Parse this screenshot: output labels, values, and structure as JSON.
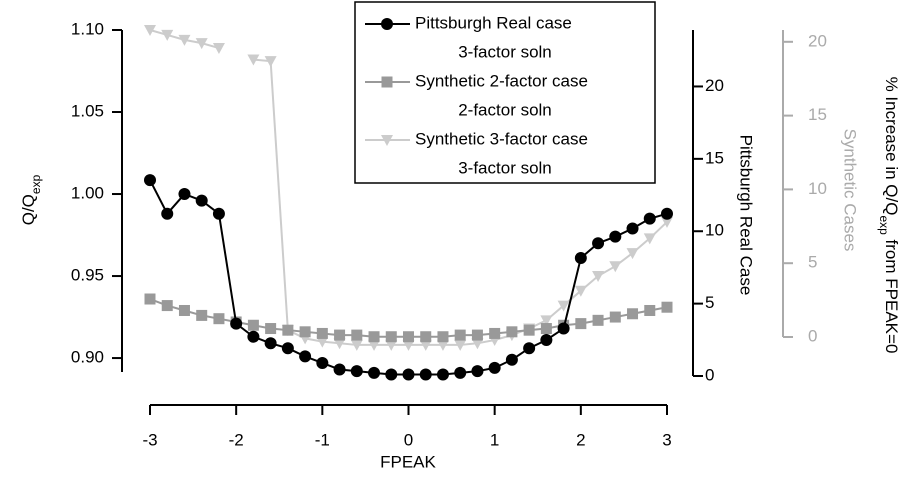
{
  "chart_data": {
    "type": "line",
    "xlabel": "FPEAK",
    "ylabel": {
      "text": "Q/Q",
      "sub": "exp"
    },
    "y2label": "Pittsburgh Real Case",
    "y3label": "Synthetic Cases",
    "y3label_outer": {
      "before": "% Increase in Q/Q",
      "sub": "exp",
      "after": " from FPEAK=0"
    },
    "x": [
      -3,
      -2.8,
      -2.6,
      -2.4,
      -2.2,
      -2,
      -1.8,
      -1.6,
      -1.4,
      -1.2,
      -1,
      -0.8,
      -0.6,
      -0.4,
      -0.2,
      0,
      0.2,
      0.4,
      0.6,
      0.8,
      1,
      1.2,
      1.4,
      1.6,
      1.8,
      2,
      2.2,
      2.4,
      2.6,
      2.8,
      3
    ],
    "series": [
      {
        "name": "Pittsburgh Real case",
        "solution": "3-factor soln",
        "color": "#000000",
        "marker": "circle",
        "values": [
          1.0085,
          0.988,
          1.0,
          0.996,
          0.988,
          0.921,
          0.913,
          0.909,
          0.906,
          0.901,
          0.897,
          0.893,
          0.892,
          0.891,
          0.89,
          0.89,
          0.89,
          0.89,
          0.891,
          0.892,
          0.894,
          0.899,
          0.906,
          0.911,
          0.918,
          0.961,
          0.97,
          0.974,
          0.979,
          0.985,
          0.988
        ]
      },
      {
        "name": "Synthetic 2-factor case",
        "solution": "2-factor soln",
        "color": "#999999",
        "marker": "square",
        "values": [
          0.936,
          0.932,
          0.929,
          0.926,
          0.924,
          0.922,
          0.92,
          0.918,
          0.917,
          0.916,
          0.915,
          0.914,
          0.914,
          0.913,
          0.913,
          0.913,
          0.913,
          0.913,
          0.914,
          0.914,
          0.915,
          0.916,
          0.917,
          0.918,
          0.92,
          0.921,
          0.923,
          0.925,
          0.927,
          0.929,
          0.931
        ]
      },
      {
        "name": "Synthetic 3-factor case",
        "solution": "3-factor soln",
        "color": "#cccccc",
        "marker": "triangle",
        "values": [
          1.1,
          1.097,
          1.094,
          1.092,
          1.089,
          null,
          1.082,
          1.081,
          0.917,
          0.912,
          0.91,
          0.909,
          0.908,
          0.908,
          0.908,
          0.908,
          0.908,
          0.908,
          0.908,
          0.909,
          0.911,
          0.914,
          0.918,
          0.923,
          0.932,
          0.941,
          0.95,
          0.956,
          0.964,
          0.973,
          0.983
        ]
      }
    ],
    "xlim": [
      -3,
      3
    ],
    "xticks": [
      -3,
      -2,
      -1,
      0,
      1,
      2,
      3
    ],
    "ylim": [
      0.8915,
      1.1
    ],
    "yticks": [
      {
        "value": 0.9,
        "label": "0.90"
      },
      0.95,
      {
        "value": 1.0,
        "label": "1.00"
      },
      1.05,
      {
        "value": 1.1,
        "label": "1.10"
      }
    ],
    "y2lim": [
      0,
      23.9
    ],
    "y2ticks": [
      0,
      5,
      10,
      15,
      20
    ],
    "y3lim": [
      0,
      20.8
    ],
    "y3ticks": [
      0,
      5,
      10,
      15,
      20
    ],
    "y3color": "#aaaaaa"
  }
}
